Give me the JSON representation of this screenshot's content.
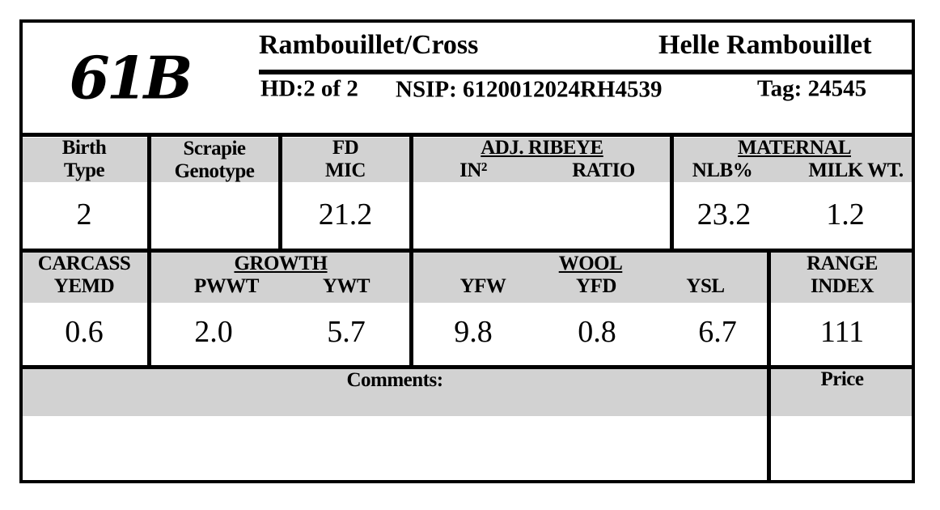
{
  "header": {
    "lot": "61B",
    "breed": "Rambouillet/Cross",
    "breeder": "Helle Rambouillet",
    "hd": "HD:2 of 2",
    "nsip": "NSIP: 6120012024RH4539",
    "tag": "Tag: 24545"
  },
  "row1": {
    "birth_type": {
      "label": [
        "Birth",
        "Type"
      ],
      "value": "2"
    },
    "scrapie": {
      "label": [
        "Scrapie",
        "Genotype"
      ]
    },
    "fd_mic": {
      "label": [
        "FD",
        "MIC"
      ],
      "value": "21.2"
    },
    "ribeye": {
      "group": "ADJ. RIBEYE",
      "columns": [
        "IN²",
        "RATIO"
      ]
    },
    "maternal": {
      "group": "MATERNAL",
      "columns": [
        "NLB%",
        "MILK WT."
      ],
      "values": [
        "23.2",
        "1.2"
      ]
    }
  },
  "row2": {
    "carcass": {
      "label": [
        "CARCASS",
        "YEMD"
      ],
      "value": "0.6"
    },
    "growth": {
      "group": "GROWTH",
      "columns": [
        "PWWT",
        "YWT"
      ],
      "values": [
        "2.0",
        "5.7"
      ]
    },
    "wool": {
      "group": "WOOL",
      "columns": [
        "YFW",
        "YFD",
        "YSL"
      ],
      "values": [
        "9.8",
        "0.8",
        "6.7"
      ]
    },
    "range_index": {
      "label": [
        "RANGE",
        "INDEX"
      ],
      "value": "111"
    }
  },
  "footer": {
    "comments": "Comments:",
    "price": "Price"
  }
}
